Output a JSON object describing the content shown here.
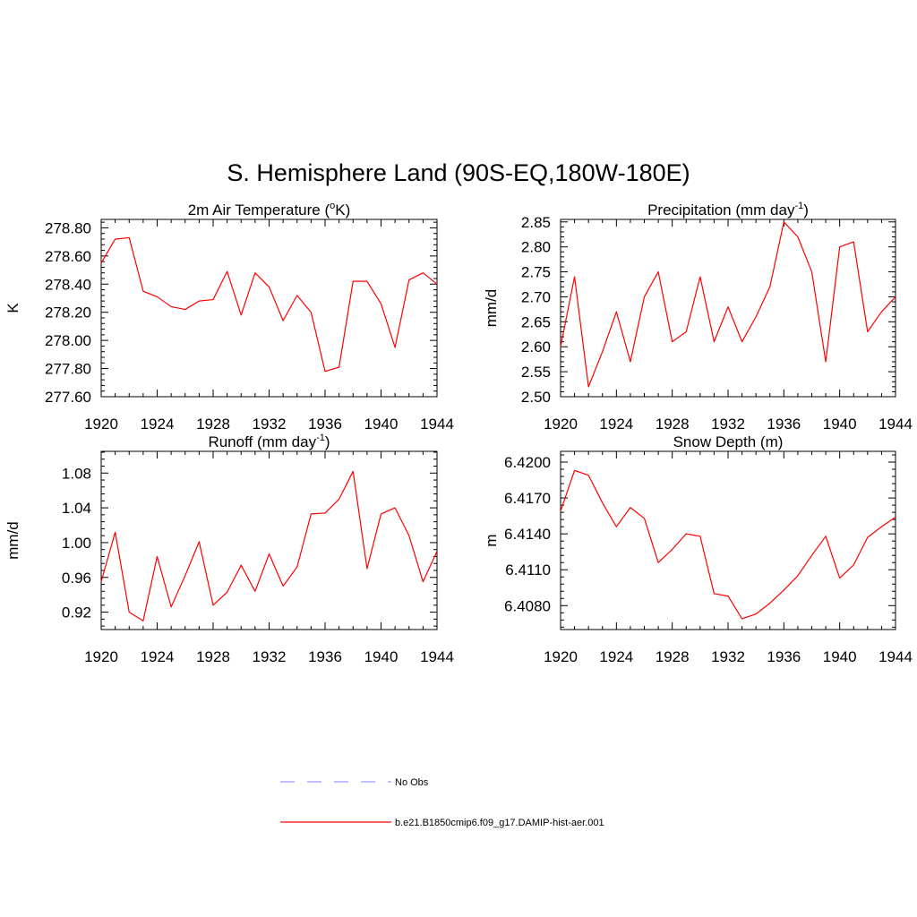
{
  "page": {
    "title": "S. Hemisphere Land (90S-EQ,180W-180E)"
  },
  "legend": {
    "placement": "bottom-center",
    "entries": [
      {
        "label": "No Obs",
        "color": "#9999ff",
        "dashed": true
      },
      {
        "label": "b.e21.B1850cmip6.f09_g17.DAMIP-hist-aer.001",
        "color": "#ff0000",
        "dashed": false
      }
    ]
  },
  "chart_data": [
    {
      "type": "line",
      "title": "2m Air Temperature (",
      "title_sup": "o",
      "title_after": "K)",
      "ylabel": "K",
      "xlabel": "",
      "xlim": [
        1920,
        1944
      ],
      "ylim": [
        277.6,
        278.86
      ],
      "xticks": [
        "1920",
        "1924",
        "1928",
        "1932",
        "1936",
        "1940",
        "1944"
      ],
      "yticks": [
        "277.60",
        "277.80",
        "278.00",
        "278.20",
        "278.40",
        "278.60",
        "278.80"
      ],
      "color": "#ff0000",
      "grid": false,
      "x": [
        1920,
        1921,
        1922,
        1923,
        1924,
        1925,
        1926,
        1927,
        1928,
        1929,
        1930,
        1931,
        1932,
        1933,
        1934,
        1935,
        1936,
        1937,
        1938,
        1939,
        1940,
        1941,
        1942,
        1943,
        1944
      ],
      "y": [
        278.55,
        278.72,
        278.73,
        278.35,
        278.31,
        278.24,
        278.22,
        278.28,
        278.29,
        278.49,
        278.18,
        278.48,
        278.38,
        278.14,
        278.32,
        278.2,
        277.78,
        277.81,
        278.42,
        278.42,
        278.26,
        277.95,
        278.43,
        278.48,
        278.4
      ]
    },
    {
      "type": "line",
      "title": "Precipitation (mm day",
      "title_sup": "-1",
      "title_after": ")",
      "ylabel": "mm/d",
      "xlabel": "",
      "xlim": [
        1920,
        1944
      ],
      "ylim": [
        2.5,
        2.855
      ],
      "xticks": [
        "1920",
        "1924",
        "1928",
        "1932",
        "1936",
        "1940",
        "1944"
      ],
      "yticks": [
        "2.50",
        "2.55",
        "2.60",
        "2.65",
        "2.70",
        "2.75",
        "2.80",
        "2.85"
      ],
      "color": "#ff0000",
      "grid": false,
      "x": [
        1920,
        1921,
        1922,
        1923,
        1924,
        1925,
        1926,
        1927,
        1928,
        1929,
        1930,
        1931,
        1932,
        1933,
        1934,
        1935,
        1936,
        1937,
        1938,
        1939,
        1940,
        1941,
        1942,
        1943,
        1944
      ],
      "y": [
        2.6,
        2.74,
        2.52,
        2.59,
        2.67,
        2.57,
        2.7,
        2.75,
        2.61,
        2.63,
        2.74,
        2.61,
        2.68,
        2.61,
        2.66,
        2.72,
        2.85,
        2.82,
        2.75,
        2.57,
        2.8,
        2.81,
        2.63,
        2.67,
        2.7
      ]
    },
    {
      "type": "line",
      "title": "Runoff (mm day",
      "title_sup": "-1",
      "title_after": ")",
      "ylabel": "mm/d",
      "xlabel": "",
      "xlim": [
        1920,
        1944
      ],
      "ylim": [
        0.9,
        1.105
      ],
      "xticks": [
        "1920",
        "1924",
        "1928",
        "1932",
        "1936",
        "1940",
        "1944"
      ],
      "yticks": [
        "0.92",
        "0.96",
        "1.00",
        "1.04",
        "1.08"
      ],
      "color": "#ff0000",
      "grid": false,
      "x": [
        1920,
        1921,
        1922,
        1923,
        1924,
        1925,
        1926,
        1927,
        1928,
        1929,
        1930,
        1931,
        1932,
        1933,
        1934,
        1935,
        1936,
        1937,
        1938,
        1939,
        1940,
        1941,
        1942,
        1943,
        1944
      ],
      "y": [
        0.955,
        1.012,
        0.92,
        0.91,
        0.984,
        0.926,
        0.962,
        1.001,
        0.928,
        0.943,
        0.974,
        0.944,
        0.987,
        0.95,
        0.972,
        1.033,
        1.034,
        1.05,
        1.082,
        0.97,
        1.033,
        1.04,
        1.008,
        0.955,
        0.99
      ]
    },
    {
      "type": "line",
      "title": "Snow Depth (m)",
      "title_sup": "",
      "title_after": "",
      "ylabel": "m",
      "xlabel": "",
      "xlim": [
        1920,
        1944
      ],
      "ylim": [
        6.406,
        6.4209
      ],
      "xticks": [
        "1920",
        "1924",
        "1928",
        "1932",
        "1936",
        "1940",
        "1944"
      ],
      "yticks": [
        "6.4080",
        "6.4110",
        "6.4140",
        "6.4170",
        "6.4200"
      ],
      "color": "#ff0000",
      "grid": false,
      "x": [
        1920,
        1921,
        1922,
        1923,
        1924,
        1925,
        1926,
        1927,
        1928,
        1929,
        1930,
        1931,
        1932,
        1933,
        1934,
        1935,
        1936,
        1937,
        1938,
        1939,
        1940,
        1941,
        1942,
        1943,
        1944
      ],
      "y": [
        6.4159,
        6.4193,
        6.4189,
        6.4166,
        6.4146,
        6.4162,
        6.4153,
        6.4116,
        6.4127,
        6.414,
        6.4138,
        6.409,
        6.4088,
        6.4069,
        6.4073,
        6.4082,
        6.4093,
        6.4105,
        6.4122,
        6.4138,
        6.4103,
        6.4114,
        6.4137,
        6.4146,
        6.4154
      ]
    }
  ]
}
